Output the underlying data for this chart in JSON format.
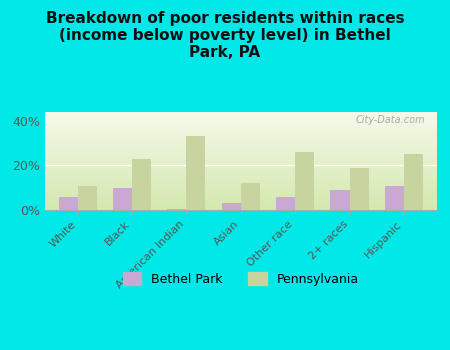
{
  "title": "Breakdown of poor residents within races\n(income below poverty level) in Bethel\nPark, PA",
  "categories": [
    "White",
    "Black",
    "American Indian",
    "Asian",
    "Other race",
    "2+ races",
    "Hispanic"
  ],
  "bethel_park": [
    6,
    10,
    0.5,
    3,
    6,
    9,
    11
  ],
  "pennsylvania": [
    11,
    23,
    33,
    12,
    26,
    19,
    25
  ],
  "bethel_color": "#c9a8d4",
  "pennsylvania_color": "#c8d4a0",
  "background_outer": "#00e8e8",
  "chart_bg_top": "#f5faea",
  "chart_bg_bottom": "#d4e8b0",
  "ylabel_ticks": [
    0,
    20,
    40
  ],
  "ylabel_labels": [
    "0%",
    "20%",
    "40%"
  ],
  "ylim": [
    0,
    44
  ],
  "watermark": "City-Data.com",
  "legend_bethel": "Bethel Park",
  "legend_pennsylvania": "Pennsylvania",
  "title_fontsize": 11,
  "tick_fontsize": 8,
  "legend_fontsize": 9
}
